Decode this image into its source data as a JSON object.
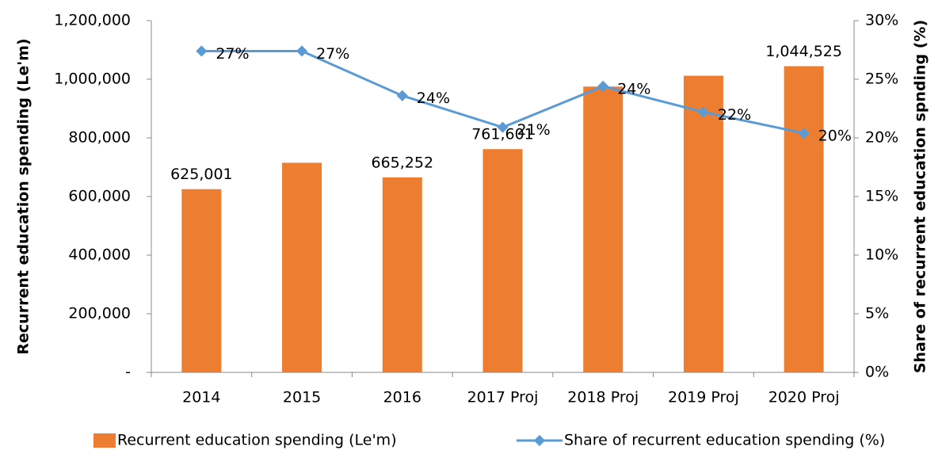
{
  "chart_data": {
    "type": "bar_line",
    "categories": [
      "2014",
      "2015",
      "2016",
      "2017 Proj",
      "2018 Proj",
      "2019 Proj",
      "2020 Proj"
    ],
    "series": [
      {
        "name": "Recurrent education spending (Le'm)",
        "type": "bar",
        "color": "#ed7d31",
        "values": [
          625001,
          715000,
          665252,
          761601,
          975000,
          1012000,
          1044525
        ],
        "value_labels": [
          "625,001",
          null,
          "665,252",
          "761,601",
          null,
          null,
          "1,044,525"
        ]
      },
      {
        "name": "Share of recurrent education spending (%)",
        "type": "line",
        "axis": "y2",
        "color": "#5b9bd5",
        "values": [
          27.4,
          27.4,
          23.6,
          20.9,
          24.4,
          22.2,
          20.4
        ],
        "value_labels": [
          "27%",
          "27%",
          "24%",
          "21%",
          "24%",
          "22%",
          "20%"
        ]
      }
    ],
    "ylabel": "Recurrent education spending (Le'm)",
    "y2label": "Share of recurrent education spnding (%)",
    "ylim": [
      0,
      1200000
    ],
    "yticks": [
      {
        "value": 0,
        "label": "-"
      },
      {
        "value": 200000,
        "label": "200,000"
      },
      {
        "value": 400000,
        "label": "400,000"
      },
      {
        "value": 600000,
        "label": "600,000"
      },
      {
        "value": 800000,
        "label": "800,000"
      },
      {
        "value": 1000000,
        "label": "1,000,000"
      },
      {
        "value": 1200000,
        "label": "1,200,000"
      }
    ],
    "y2lim": [
      0,
      30
    ],
    "y2ticks": [
      {
        "value": 0,
        "label": "0%"
      },
      {
        "value": 5,
        "label": "5%"
      },
      {
        "value": 10,
        "label": "10%"
      },
      {
        "value": 15,
        "label": "15%"
      },
      {
        "value": 20,
        "label": "20%"
      },
      {
        "value": 25,
        "label": "25%"
      },
      {
        "value": 30,
        "label": "30%"
      }
    ],
    "legend": "bottom"
  }
}
